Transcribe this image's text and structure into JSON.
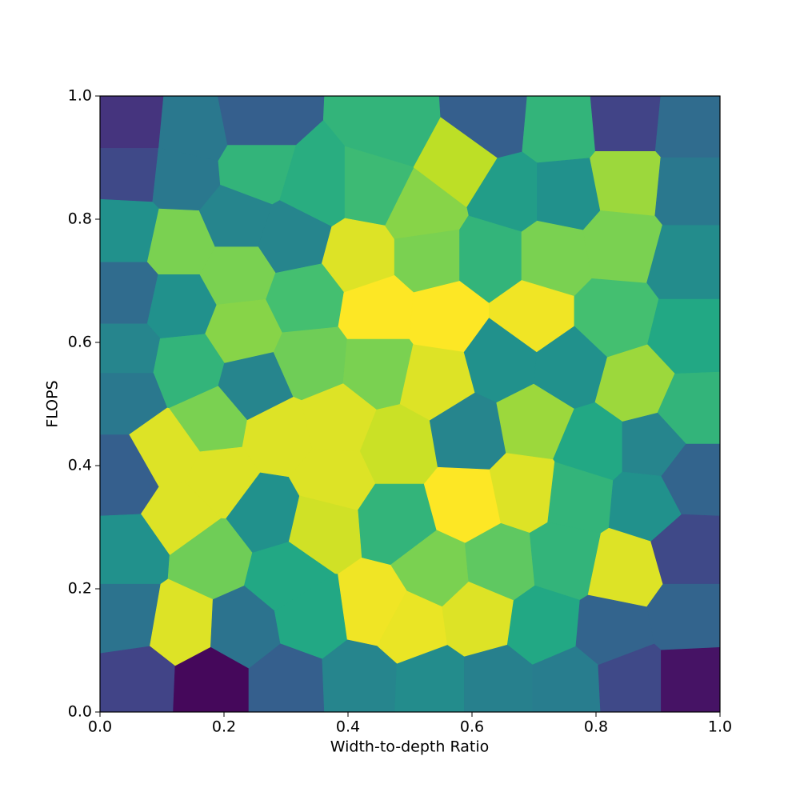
{
  "chart_data": {
    "type": "voronoi",
    "colormap": "viridis",
    "xlabel": "Width-to-depth Ratio",
    "ylabel": "FLOPS",
    "xlim": [
      0,
      1
    ],
    "ylim": [
      0,
      1
    ],
    "xticks": [
      {
        "value": 0,
        "label": "0.0"
      },
      0.2,
      0.4,
      0.6,
      0.8,
      {
        "value": 1,
        "label": "1.0"
      }
    ],
    "yticks": [
      {
        "value": 0,
        "label": "0.0"
      },
      0.2,
      0.4,
      0.6,
      0.8,
      {
        "value": 1,
        "label": "1.0"
      }
    ],
    "x": [
      0.045,
      0.15,
      0.25,
      0.47,
      0.63,
      0.74,
      0.85,
      0.95,
      0.045,
      0.135,
      0.25,
      0.35,
      0.44,
      0.58,
      0.66,
      0.75,
      0.85,
      0.95,
      0.04,
      0.13,
      0.22,
      0.31,
      0.42,
      0.52,
      0.53,
      0.63,
      0.73,
      0.84,
      0.95,
      0.04,
      0.13,
      0.22,
      0.23,
      0.33,
      0.45,
      0.555,
      0.7,
      0.83,
      0.95,
      0.04,
      0.14,
      0.25,
      0.34,
      0.45,
      0.54,
      0.65,
      0.755,
      0.865,
      0.955,
      0.04,
      0.18,
      0.11,
      0.29,
      0.38,
      0.48,
      0.595,
      0.7,
      0.795,
      0.89,
      0.04,
      0.19,
      0.13,
      0.27,
      0.375,
      0.48,
      0.59,
      0.685,
      0.77,
      0.88,
      0.955,
      0.045,
      0.18,
      0.355,
      0.3,
      0.54,
      0.645,
      0.75,
      0.845,
      0.95,
      0.045,
      0.13,
      0.23,
      0.34,
      0.445,
      0.5,
      0.61,
      0.715,
      0.825,
      0.95,
      0.06,
      0.18,
      0.3,
      0.42,
      0.535,
      0.64,
      0.755,
      0.855,
      0.955
    ],
    "y": [
      0.95,
      0.94,
      0.96,
      0.95,
      0.96,
      0.95,
      0.96,
      0.95,
      0.88,
      0.87,
      0.88,
      0.85,
      0.85,
      0.89,
      0.84,
      0.84,
      0.86,
      0.85,
      0.78,
      0.76,
      0.8,
      0.77,
      0.74,
      0.81,
      0.74,
      0.74,
      0.74,
      0.76,
      0.73,
      0.68,
      0.66,
      0.71,
      0.62,
      0.67,
      0.65,
      0.64,
      0.64,
      0.64,
      0.61,
      0.58,
      0.56,
      0.53,
      0.57,
      0.56,
      0.54,
      0.57,
      0.56,
      0.53,
      0.49,
      0.52,
      0.47,
      0.42,
      0.45,
      0.47,
      0.43,
      0.45,
      0.47,
      0.43,
      0.43,
      0.38,
      0.38,
      0.32,
      0.32,
      0.38,
      0.31,
      0.34,
      0.36,
      0.35,
      0.34,
      0.38,
      0.26,
      0.25,
      0.3,
      0.22,
      0.23,
      0.24,
      0.25,
      0.23,
      0.26,
      0.155,
      0.14,
      0.135,
      0.155,
      0.17,
      0.14,
      0.155,
      0.14,
      0.13,
      0.155,
      0.05,
      0.045,
      0.045,
      0.05,
      0.045,
      0.045,
      0.045,
      0.05,
      0.05
    ],
    "values": [
      0.15,
      0.4,
      0.3,
      0.65,
      0.3,
      0.65,
      0.2,
      0.35,
      0.22,
      0.4,
      0.65,
      0.62,
      0.68,
      0.9,
      0.55,
      0.5,
      0.85,
      0.4,
      0.5,
      0.8,
      0.45,
      0.45,
      0.95,
      0.82,
      0.8,
      0.65,
      0.8,
      0.8,
      0.48,
      0.35,
      0.5,
      0.8,
      0.82,
      0.7,
      1.0,
      1.0,
      0.98,
      0.7,
      0.6,
      0.45,
      0.65,
      0.45,
      0.78,
      0.8,
      0.95,
      0.5,
      0.5,
      0.85,
      0.65,
      0.4,
      0.8,
      0.95,
      0.95,
      0.95,
      0.92,
      0.45,
      0.85,
      0.6,
      0.45,
      0.3,
      0.95,
      0.95,
      0.5,
      0.95,
      0.65,
      1.0,
      0.95,
      0.65,
      0.5,
      0.32,
      0.5,
      0.78,
      0.93,
      0.6,
      0.8,
      0.75,
      0.65,
      0.95,
      0.22,
      0.38,
      0.95,
      0.38,
      0.6,
      0.98,
      0.97,
      0.95,
      0.6,
      0.32,
      0.32,
      0.2,
      0.02,
      0.3,
      0.45,
      0.48,
      0.43,
      0.42,
      0.22,
      0.05
    ]
  }
}
